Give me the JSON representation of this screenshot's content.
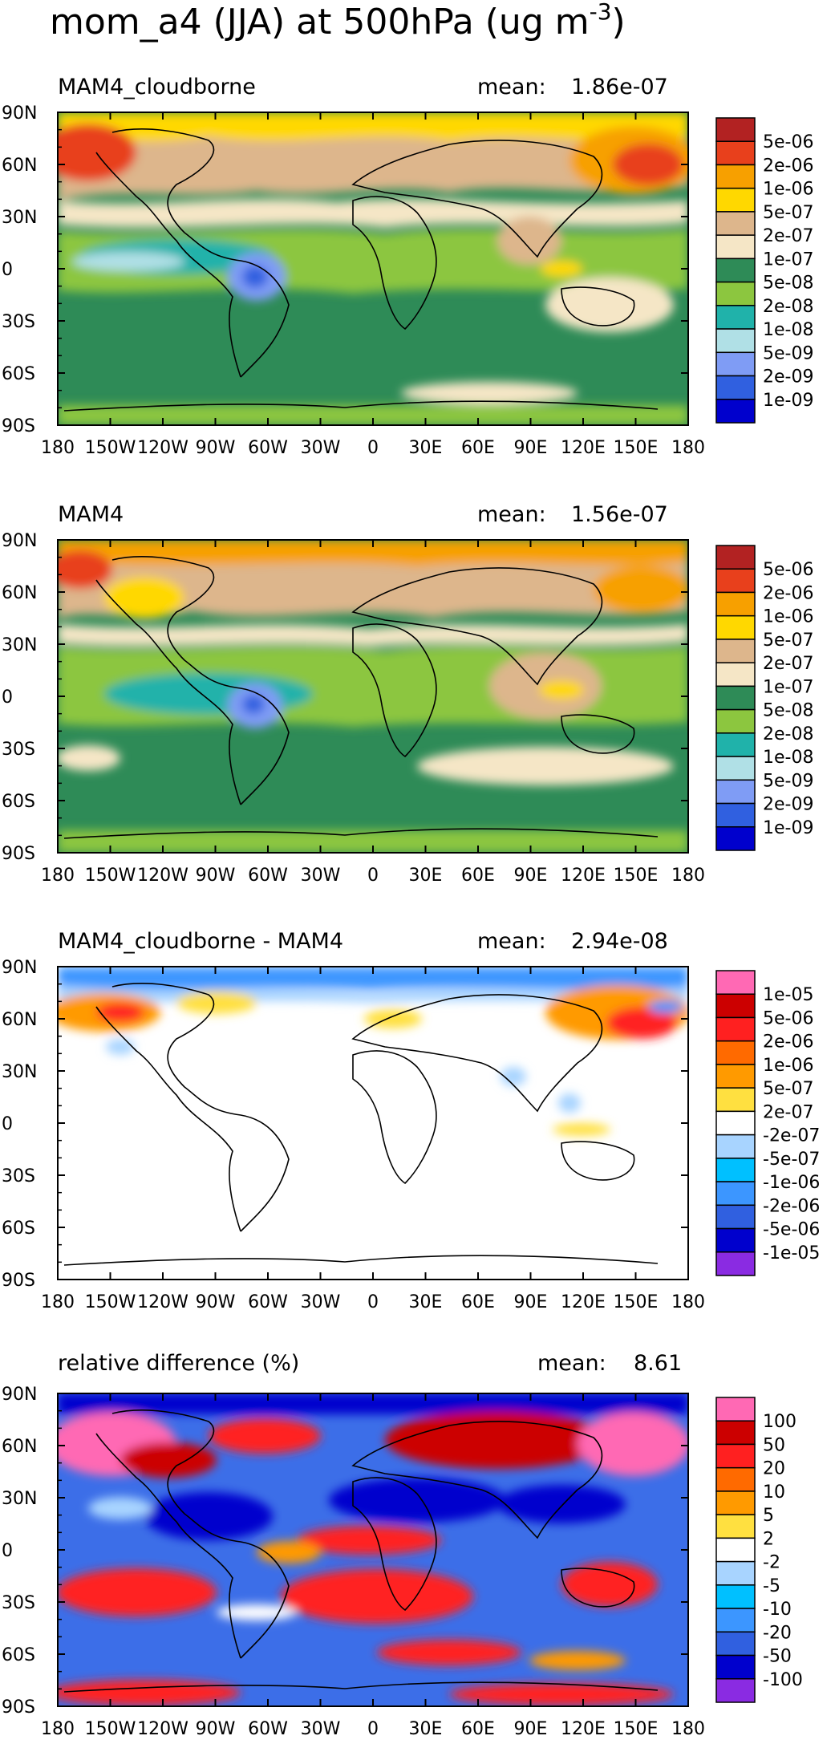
{
  "figure": {
    "title": "mom_a4 (JJA) at 500hPa (ug m",
    "title_exponent": "-3",
    "title_close": ")"
  },
  "axes": {
    "lon_ticks": [
      "180",
      "150W",
      "120W",
      "90W",
      "60W",
      "30W",
      "0",
      "30E",
      "60E",
      "90E",
      "120E",
      "150E",
      "180"
    ],
    "lat_ticks": [
      "90N",
      "60N",
      "30N",
      "0",
      "30S",
      "60S",
      "90S"
    ]
  },
  "panels": [
    {
      "name": "MAM4_cloudborne",
      "left_label": "MAM4_cloudborne",
      "mean_label": "mean:",
      "mean_value": "1.86e-07",
      "colorbar": {
        "labels": [
          "5e-06",
          "2e-06",
          "1e-06",
          "5e-07",
          "2e-07",
          "1e-07",
          "5e-08",
          "2e-08",
          "1e-08",
          "5e-09",
          "2e-09",
          "1e-09"
        ],
        "colors": [
          "#b22222",
          "#e8401c",
          "#f7a000",
          "#ffd800",
          "#ddb68c",
          "#f5e6c6",
          "#2e8b57",
          "#8cc63f",
          "#20b2aa",
          "#b0e0e6",
          "#7f9cf5",
          "#3060e0",
          "#0000cd"
        ]
      },
      "background": "#2e8b57"
    },
    {
      "name": "MAM4",
      "left_label": "MAM4",
      "mean_label": "mean:",
      "mean_value": "1.56e-07",
      "colorbar": {
        "labels": [
          "5e-06",
          "2e-06",
          "1e-06",
          "5e-07",
          "2e-07",
          "1e-07",
          "5e-08",
          "2e-08",
          "1e-08",
          "5e-09",
          "2e-09",
          "1e-09"
        ],
        "colors": [
          "#b22222",
          "#e8401c",
          "#f7a000",
          "#ffd800",
          "#ddb68c",
          "#f5e6c6",
          "#2e8b57",
          "#8cc63f",
          "#20b2aa",
          "#b0e0e6",
          "#7f9cf5",
          "#3060e0",
          "#0000cd"
        ]
      },
      "background": "#2e8b57"
    },
    {
      "name": "difference",
      "left_label": "MAM4_cloudborne - MAM4",
      "mean_label": "mean:",
      "mean_value": "2.94e-08",
      "colorbar": {
        "labels": [
          "1e-05",
          "5e-06",
          "2e-06",
          "1e-06",
          "5e-07",
          "2e-07",
          "-2e-07",
          "-5e-07",
          "-1e-06",
          "-2e-06",
          "-5e-06",
          "-1e-05"
        ],
        "colors": [
          "#ff69b4",
          "#cc0000",
          "#ff2020",
          "#ff6a00",
          "#ff9a00",
          "#ffe040",
          "#ffffff",
          "#a8d4ff",
          "#00c0ff",
          "#3c96ff",
          "#3060e0",
          "#0000cd",
          "#8a2be2"
        ]
      },
      "background": "#ffffff"
    },
    {
      "name": "relative-difference",
      "left_label": "relative difference (%)",
      "mean_label": "mean:",
      "mean_value": "8.61",
      "colorbar": {
        "labels": [
          "100",
          "50",
          "20",
          "10",
          "5",
          "2",
          "-2",
          "-5",
          "-10",
          "-20",
          "-50",
          "-100"
        ],
        "colors": [
          "#ff69b4",
          "#cc0000",
          "#ff2020",
          "#ff6a00",
          "#ff9a00",
          "#ffe040",
          "#ffffff",
          "#a8d4ff",
          "#00c0ff",
          "#3c96ff",
          "#3060e0",
          "#0000cd",
          "#8a2be2"
        ]
      },
      "background": "#3c6ee8"
    }
  ]
}
